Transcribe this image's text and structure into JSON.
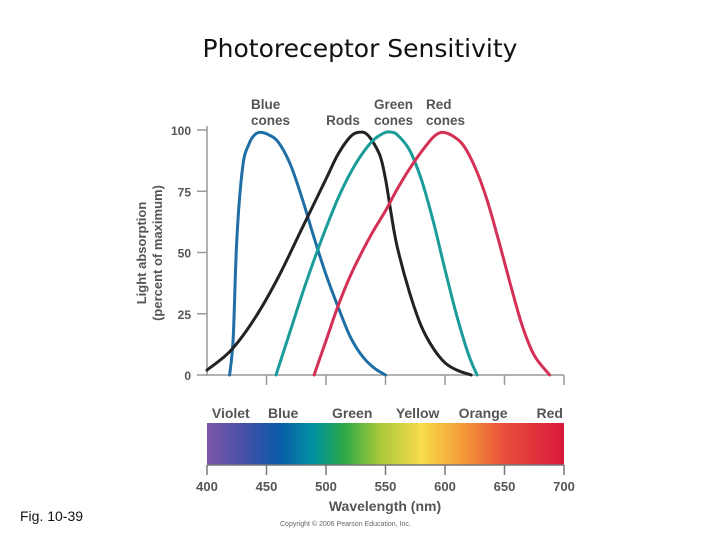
{
  "slide": {
    "title": "Photoreceptor Sensitivity",
    "figure_label": "Fig. 10-39",
    "copyright": "Copyright © 2006 Pearson Education, Inc."
  },
  "chart_data": {
    "type": "line",
    "title": "",
    "xlabel": "Wavelength (nm)",
    "ylabel_line1": "Light absorption",
    "ylabel_line2": "(percent of maximum)",
    "xlim": [
      400,
      700
    ],
    "ylim": [
      0,
      100
    ],
    "x_ticks": [
      400,
      450,
      500,
      550,
      600,
      650,
      700
    ],
    "y_ticks": [
      0,
      25,
      50,
      75,
      100
    ],
    "grid": false,
    "series": [
      {
        "name": "Blue cones",
        "label_lines": [
          "Blue",
          "cones"
        ],
        "color": "#1f6fa6",
        "x": [
          419,
          422,
          425,
          430,
          435,
          440,
          445,
          452,
          460,
          470,
          480,
          490,
          500,
          510,
          520,
          530,
          540,
          550
        ],
        "y": [
          0,
          15,
          55,
          85,
          94,
          98,
          99,
          98,
          95,
          86,
          72,
          56,
          41,
          28,
          16,
          8,
          3,
          0
        ]
      },
      {
        "name": "Rods",
        "label_lines": [
          "Rods"
        ],
        "color": "#222222",
        "x": [
          400,
          420,
          440,
          460,
          480,
          500,
          510,
          520,
          527,
          535,
          545,
          550,
          555,
          560,
          570,
          580,
          590,
          600,
          610,
          622
        ],
        "y": [
          2,
          10,
          23,
          40,
          60,
          80,
          90,
          97,
          99,
          98,
          90,
          80,
          65,
          52,
          34,
          20,
          11,
          5,
          2,
          0
        ]
      },
      {
        "name": "Green cones",
        "label_lines": [
          "Green",
          "cones"
        ],
        "color": "#1a9c99",
        "x": [
          458,
          470,
          480,
          490,
          500,
          510,
          520,
          530,
          540,
          550,
          556,
          560,
          570,
          580,
          590,
          600,
          610,
          620,
          627
        ],
        "y": [
          0,
          18,
          33,
          47,
          60,
          72,
          82,
          90,
          96,
          99,
          99,
          98,
          92,
          80,
          63,
          43,
          24,
          8,
          0
        ]
      },
      {
        "name": "Red cones",
        "label_lines": [
          "Red",
          "cones"
        ],
        "color": "#d43056",
        "x": [
          490,
          500,
          510,
          520,
          530,
          540,
          550,
          560,
          570,
          580,
          590,
          597,
          605,
          615,
          625,
          635,
          645,
          655,
          665,
          675,
          688
        ],
        "y": [
          0,
          14,
          28,
          40,
          50,
          59,
          67,
          76,
          84,
          91,
          97,
          99,
          98,
          94,
          85,
          72,
          55,
          37,
          20,
          8,
          0
        ]
      }
    ],
    "spectrum_bands": [
      {
        "label": "Violet",
        "center": 420
      },
      {
        "label": "Blue",
        "center": 464
      },
      {
        "label": "Green",
        "center": 522
      },
      {
        "label": "Yellow",
        "center": 577
      },
      {
        "label": "Orange",
        "center": 632
      },
      {
        "label": "Red",
        "center": 688
      }
    ],
    "spectrum_colors": [
      {
        "nm": 400,
        "color": "#7a57a8"
      },
      {
        "nm": 430,
        "color": "#4a4fa8"
      },
      {
        "nm": 460,
        "color": "#0a5aa8"
      },
      {
        "nm": 490,
        "color": "#0093a0"
      },
      {
        "nm": 515,
        "color": "#2aa748"
      },
      {
        "nm": 545,
        "color": "#a8c83a"
      },
      {
        "nm": 580,
        "color": "#f8dc4a"
      },
      {
        "nm": 615,
        "color": "#f39a37"
      },
      {
        "nm": 650,
        "color": "#e94e3c"
      },
      {
        "nm": 700,
        "color": "#d8193a"
      }
    ]
  }
}
